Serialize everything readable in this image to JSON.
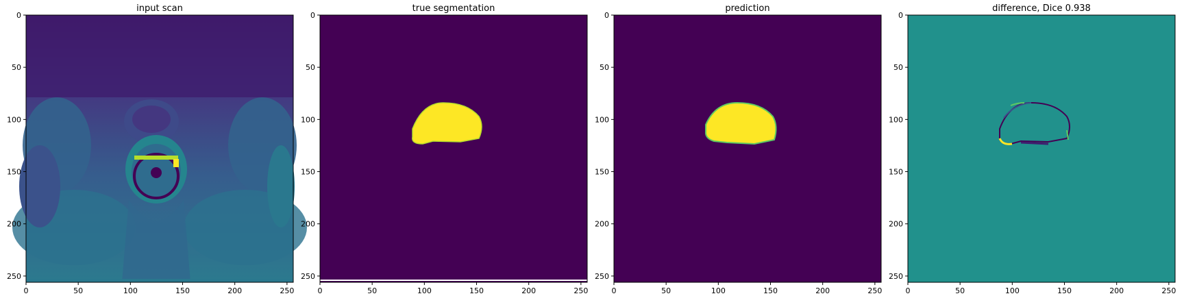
{
  "chart_data": [
    {
      "type": "heatmap",
      "title": "input scan",
      "content": "MRI axial pelvic scan (viridis colormap)",
      "xlim": [
        0,
        256
      ],
      "ylim": [
        256,
        0
      ],
      "xticks": [
        0,
        50,
        100,
        150,
        200,
        250
      ],
      "yticks": [
        0,
        50,
        100,
        150,
        200,
        250
      ],
      "colormap": "viridis"
    },
    {
      "type": "heatmap",
      "title": "true segmentation",
      "content": "binary mask",
      "xlim": [
        0,
        256
      ],
      "ylim": [
        256,
        0
      ],
      "xticks": [
        0,
        50,
        100,
        150,
        200,
        250
      ],
      "yticks": [
        0,
        50,
        100,
        150,
        200,
        250
      ],
      "colormap": "viridis",
      "mask_extent": {
        "x": [
          89,
          153
        ],
        "y": [
          84,
          130
        ]
      }
    },
    {
      "type": "heatmap",
      "title": "prediction",
      "content": "predicted mask",
      "xlim": [
        0,
        256
      ],
      "ylim": [
        256,
        0
      ],
      "xticks": [
        0,
        50,
        100,
        150,
        200,
        250
      ],
      "yticks": [
        0,
        50,
        100,
        150,
        200,
        250
      ],
      "colormap": "viridis",
      "mask_extent": {
        "x": [
          88,
          154
        ],
        "y": [
          84,
          132
        ]
      }
    },
    {
      "type": "heatmap",
      "title": "difference, Dice 0.938",
      "content": "difference map",
      "xlim": [
        0,
        256
      ],
      "ylim": [
        256,
        0
      ],
      "xticks": [
        0,
        50,
        100,
        150,
        200,
        250
      ],
      "yticks": [
        0,
        50,
        100,
        150,
        200,
        250
      ],
      "colormap": "viridis",
      "dice": 0.938
    }
  ],
  "colors": {
    "viridis_dark": "#440154",
    "viridis_mid": "#21918c",
    "viridis_yellow": "#fde725",
    "viridis_green": "#5ec962",
    "viridis_blue": "#3b528b"
  }
}
